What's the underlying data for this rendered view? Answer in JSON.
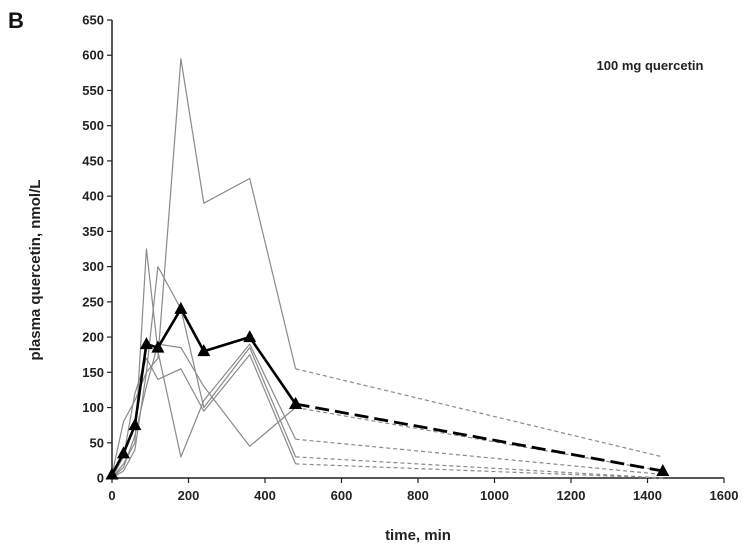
{
  "panel_label": "B",
  "chart_data": {
    "type": "line",
    "title": "",
    "annotation": "100 mg quercetin",
    "xlabel": "time, min",
    "ylabel": "plasma quercetin, nmol/L",
    "xlim": [
      0,
      1600
    ],
    "ylim": [
      0,
      650
    ],
    "xticks": [
      0,
      200,
      400,
      600,
      800,
      1000,
      1200,
      1400,
      1600
    ],
    "yticks": [
      0,
      50,
      100,
      150,
      200,
      250,
      300,
      350,
      400,
      450,
      500,
      550,
      600,
      650
    ],
    "grid": false,
    "legend": "none",
    "series": [
      {
        "style": "solid",
        "color": "#8a8a8a",
        "x": [
          0,
          30,
          60,
          90,
          120,
          180,
          240,
          360,
          480
        ],
        "y": [
          5,
          80,
          110,
          150,
          170,
          595,
          390,
          425,
          155
        ]
      },
      {
        "style": "dashed",
        "color": "#8a8a8a",
        "x": [
          480,
          1440
        ],
        "y": [
          155,
          30
        ]
      },
      {
        "style": "solid",
        "color": "#8a8a8a",
        "x": [
          0,
          30,
          60,
          90,
          120,
          180,
          240,
          360,
          480
        ],
        "y": [
          0,
          20,
          50,
          325,
          180,
          30,
          110,
          190,
          55
        ]
      },
      {
        "style": "dashed",
        "color": "#8a8a8a",
        "x": [
          480,
          1440
        ],
        "y": [
          55,
          5
        ]
      },
      {
        "style": "solid",
        "color": "#8a8a8a",
        "x": [
          0,
          30,
          60,
          90,
          120,
          180,
          240,
          360,
          480
        ],
        "y": [
          0,
          10,
          40,
          150,
          300,
          240,
          100,
          185,
          30
        ]
      },
      {
        "style": "dashed",
        "color": "#8a8a8a",
        "x": [
          480,
          1440
        ],
        "y": [
          30,
          0
        ]
      },
      {
        "style": "solid",
        "color": "#8a8a8a",
        "x": [
          0,
          30,
          60,
          90,
          120,
          180,
          240,
          360,
          480
        ],
        "y": [
          0,
          30,
          120,
          170,
          140,
          155,
          95,
          175,
          20
        ]
      },
      {
        "style": "dashed",
        "color": "#8a8a8a",
        "x": [
          480,
          1440
        ],
        "y": [
          20,
          0
        ]
      },
      {
        "style": "solid",
        "color": "#8a8a8a",
        "x": [
          0,
          30,
          60,
          90,
          120,
          180,
          240,
          360,
          480
        ],
        "y": [
          0,
          15,
          60,
          130,
          190,
          185,
          130,
          45,
          100
        ]
      },
      {
        "style": "dashed",
        "color": "#8a8a8a",
        "x": [
          480,
          1440
        ],
        "y": [
          100,
          10
        ]
      },
      {
        "style": "mean",
        "color": "#000000",
        "marker": "triangle",
        "x": [
          0,
          30,
          60,
          90,
          120,
          180,
          240,
          360,
          480
        ],
        "y": [
          5,
          35,
          75,
          190,
          185,
          240,
          180,
          200,
          105
        ]
      },
      {
        "style": "mean-dashed",
        "color": "#000000",
        "marker": "triangle",
        "x": [
          480,
          1440
        ],
        "y": [
          105,
          10
        ]
      }
    ]
  }
}
